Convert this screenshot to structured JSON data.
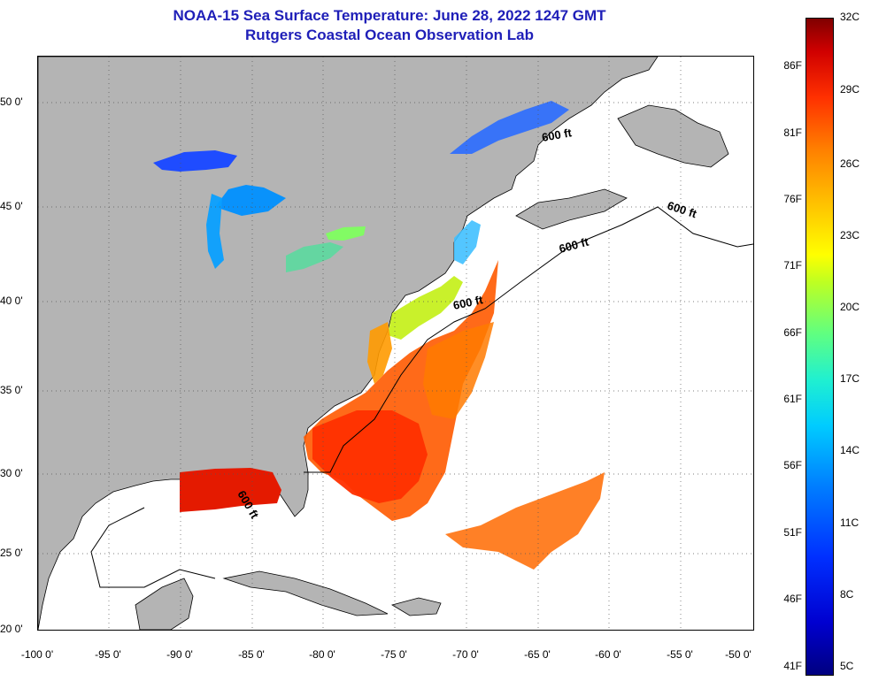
{
  "title": {
    "line1": "NOAA-15 Sea Surface Temperature:  June 28, 2022 1247 GMT",
    "line2": "Rutgers Coastal Ocean Observation Lab"
  },
  "map": {
    "latitude_labels": [
      "50 0'",
      "45 0'",
      "40 0'",
      "35 0'",
      "30 0'",
      "25 0'",
      "20 0'"
    ],
    "longitude_labels": [
      "-100 0'",
      "-95 0'",
      "-90 0'",
      "-85 0'",
      "-80 0'",
      "-75 0'",
      "-70 0'",
      "-65 0'",
      "-60 0'",
      "-55 0'",
      "-50 0'"
    ],
    "contour_label": "600 ft",
    "colors": {
      "land": "#b4b4b4",
      "no_data": "#ffffff",
      "grid": "#555555"
    }
  },
  "colorbar": {
    "fahrenheit_labels": [
      "86F",
      "81F",
      "76F",
      "71F",
      "66F",
      "61F",
      "56F",
      "51F",
      "46F",
      "41F"
    ],
    "celsius_labels": [
      "32C",
      "29C",
      "26C",
      "23C",
      "20C",
      "17C",
      "14C",
      "11C",
      "8C",
      "5C"
    ]
  }
}
